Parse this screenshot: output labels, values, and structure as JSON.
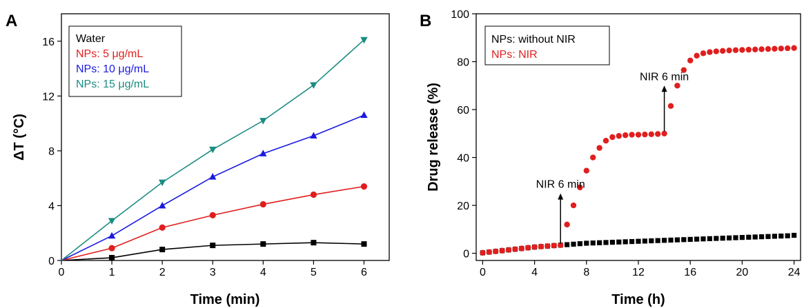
{
  "chart_data": [
    {
      "type": "line",
      "panel_label": "A",
      "xlabel": "Time (min)",
      "ylabel": "ΔT (°C)",
      "xlim": [
        0,
        6.5
      ],
      "ylim": [
        0,
        18
      ],
      "xticks": [
        0,
        1,
        2,
        3,
        4,
        5,
        6
      ],
      "yticks": [
        0,
        4,
        8,
        12,
        16
      ],
      "x": [
        0,
        1,
        2,
        3,
        4,
        5,
        6
      ],
      "legend_position": "top-left",
      "series": [
        {
          "name": "Water",
          "color": "#000000",
          "marker": "square",
          "values": [
            0,
            0.2,
            0.8,
            1.1,
            1.2,
            1.3,
            1.2
          ]
        },
        {
          "name": "NPs: 5 μg/mL",
          "color": "#e01e1e",
          "marker": "circle",
          "values": [
            0,
            0.9,
            2.4,
            3.3,
            4.1,
            4.8,
            5.4
          ]
        },
        {
          "name": "NPs: 10 μg/mL",
          "color": "#1a1ae0",
          "marker": "triangle-up",
          "values": [
            0,
            1.8,
            4.0,
            6.1,
            7.8,
            9.1,
            10.6
          ]
        },
        {
          "name": "NPs: 15 μg/mL",
          "color": "#1a8c82",
          "marker": "triangle-down",
          "values": [
            0,
            2.9,
            5.7,
            8.1,
            10.2,
            12.8,
            16.1
          ]
        }
      ]
    },
    {
      "type": "scatter",
      "panel_label": "B",
      "xlabel": "Time (h)",
      "ylabel": "Drug release (%)",
      "xlim": [
        -0.5,
        24.5
      ],
      "ylim": [
        -3,
        100
      ],
      "xticks": [
        0,
        4,
        8,
        12,
        16,
        20,
        24
      ],
      "yticks": [
        0,
        20,
        40,
        60,
        80,
        100
      ],
      "legend_position": "top-left",
      "series": [
        {
          "name": "NPs: without NIR",
          "color": "#000000",
          "marker": "square",
          "x": [
            0,
            0.5,
            1,
            1.5,
            2,
            2.5,
            3,
            3.5,
            4,
            4.5,
            5,
            5.5,
            6,
            6.5,
            7,
            7.5,
            8,
            8.5,
            9,
            9.5,
            10,
            10.5,
            11,
            11.5,
            12,
            12.5,
            13,
            13.5,
            14,
            14.5,
            15,
            15.5,
            16,
            16.5,
            17,
            17.5,
            18,
            18.5,
            19,
            19.5,
            20,
            20.5,
            21,
            21.5,
            22,
            22.5,
            23,
            23.5,
            24
          ],
          "y": [
            0.2,
            0.5,
            0.8,
            1.1,
            1.4,
            1.7,
            2.0,
            2.3,
            2.6,
            2.8,
            3.0,
            3.2,
            3.4,
            3.6,
            3.8,
            4.0,
            4.2,
            4.3,
            4.4,
            4.5,
            4.6,
            4.7,
            4.8,
            4.9,
            5.0,
            5.1,
            5.2,
            5.3,
            5.4,
            5.5,
            5.6,
            5.7,
            5.8,
            5.9,
            6.0,
            6.1,
            6.2,
            6.3,
            6.4,
            6.5,
            6.6,
            6.7,
            6.8,
            6.9,
            7.0,
            7.1,
            7.2,
            7.3,
            7.5
          ]
        },
        {
          "name": "NPs: NIR",
          "color": "#e01e1e",
          "marker": "circle",
          "x": [
            0,
            0.5,
            1,
            1.5,
            2,
            2.5,
            3,
            3.5,
            4,
            4.5,
            5,
            5.5,
            6,
            6.5,
            7,
            7.5,
            8,
            8.5,
            9,
            9.5,
            10,
            10.5,
            11,
            11.5,
            12,
            12.5,
            13,
            13.5,
            14,
            14.5,
            15,
            15.5,
            16,
            16.5,
            17,
            17.5,
            18,
            18.5,
            19,
            19.5,
            20,
            20.5,
            21,
            21.5,
            22,
            22.5,
            23,
            23.5,
            24
          ],
          "y": [
            0.2,
            0.5,
            0.8,
            1.1,
            1.4,
            1.7,
            2.0,
            2.3,
            2.6,
            2.8,
            3.0,
            3.2,
            3.4,
            12.0,
            20.0,
            27.5,
            34.5,
            40.0,
            44.0,
            47.0,
            48.5,
            49.0,
            49.3,
            49.5,
            49.5,
            49.6,
            49.7,
            49.8,
            50.0,
            61.5,
            70.0,
            76.5,
            80.5,
            82.5,
            83.5,
            84.0,
            84.3,
            84.5,
            84.7,
            84.8,
            84.9,
            85.0,
            85.1,
            85.2,
            85.3,
            85.4,
            85.5,
            85.6,
            85.7
          ]
        }
      ],
      "annotations": [
        {
          "text": "NIR 6 min",
          "x": 6,
          "y_from": 4,
          "y_to": 25
        },
        {
          "text": "NIR 6 min",
          "x": 14,
          "y_from": 51,
          "y_to": 70
        }
      ]
    }
  ]
}
